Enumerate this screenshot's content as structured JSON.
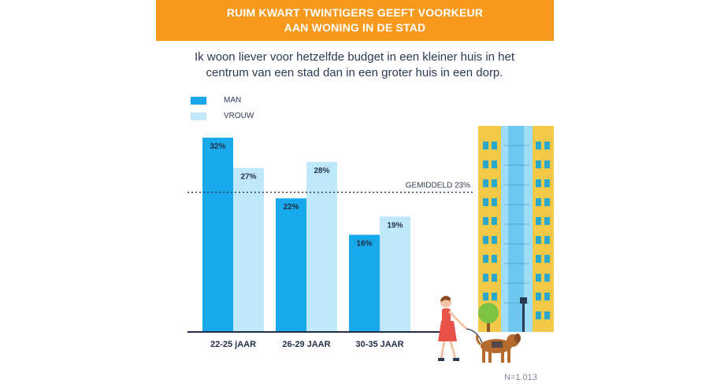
{
  "header": {
    "title": "RUIM KWART TWINTIGERS GEEFT VOORKEUR AAN WONING IN DE STAD",
    "subtitle": "Ik woon liever voor hetzelfde budget in een kleiner huis in het centrum van een stad dan in een groter huis in een dorp."
  },
  "colors": {
    "banner": "#f79a1e",
    "man": "#18a8ec",
    "vrouw": "#bfe9fb"
  },
  "chart_data": {
    "type": "bar",
    "categories": [
      "22-25 jAAR",
      "26-29 JAAR",
      "30-35 JAAR"
    ],
    "series": [
      {
        "name": "MAN",
        "values": [
          32,
          22,
          16
        ],
        "labels": [
          "32%",
          "22%",
          "16%"
        ]
      },
      {
        "name": "VROUW",
        "values": [
          27,
          28,
          19
        ],
        "labels": [
          "27%",
          "28%",
          "19%"
        ]
      }
    ],
    "reference_line": {
      "value": 23,
      "label": "GEMIDDELD 23%"
    },
    "ylim": [
      0,
      32
    ],
    "legend": "top-left",
    "grid": false
  },
  "footnote": "N=1.013",
  "illustration": {
    "items": [
      "apartment-building-illustration",
      "woman-walking-dog-illustration",
      "tree-icon",
      "street-lamp-icon"
    ]
  }
}
